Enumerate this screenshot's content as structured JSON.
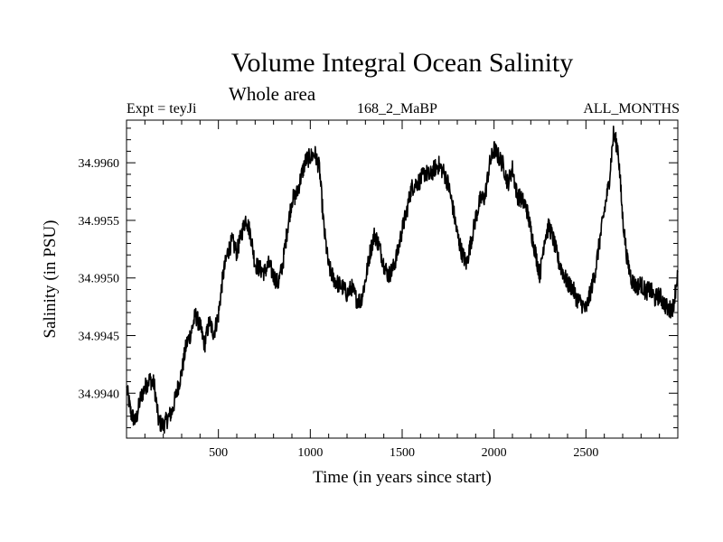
{
  "chart_data": {
    "type": "line",
    "title": "Volume Integral Ocean Salinity",
    "subtitle": "Whole area",
    "experiment_label": "Expt = teyJi",
    "run_label": "168_2_MaBP",
    "period_label": "ALL_MONTHS",
    "xlabel": "Time (in years since start)",
    "ylabel": "Salinity (in PSU)",
    "xlim": [
      0,
      3000
    ],
    "ylim": [
      34.99361,
      34.99637
    ],
    "x_ticks": [
      500,
      1000,
      1500,
      2000,
      2500
    ],
    "y_ticks": [
      34.994,
      34.9945,
      34.995,
      34.9955,
      34.996
    ],
    "y_tick_labels": [
      "34.9940",
      "34.9945",
      "34.9950",
      "34.9955",
      "34.9960"
    ],
    "grid": false,
    "series": [
      {
        "name": "Salinity",
        "x": [
          0,
          25,
          50,
          75,
          100,
          125,
          150,
          175,
          200,
          225,
          250,
          275,
          300,
          325,
          350,
          375,
          400,
          425,
          450,
          475,
          500,
          525,
          550,
          575,
          600,
          625,
          650,
          675,
          700,
          725,
          750,
          775,
          800,
          825,
          850,
          875,
          900,
          925,
          950,
          975,
          1000,
          1025,
          1050,
          1075,
          1100,
          1125,
          1150,
          1175,
          1200,
          1225,
          1250,
          1275,
          1300,
          1325,
          1350,
          1375,
          1400,
          1425,
          1450,
          1475,
          1500,
          1525,
          1550,
          1575,
          1600,
          1625,
          1650,
          1675,
          1700,
          1725,
          1750,
          1775,
          1800,
          1825,
          1850,
          1875,
          1900,
          1925,
          1950,
          1975,
          2000,
          2025,
          2050,
          2075,
          2100,
          2125,
          2150,
          2175,
          2200,
          2225,
          2250,
          2275,
          2300,
          2325,
          2350,
          2375,
          2400,
          2425,
          2450,
          2475,
          2500,
          2525,
          2550,
          2575,
          2600,
          2625,
          2650,
          2675,
          2700,
          2725,
          2750,
          2775,
          2800,
          2825,
          2850,
          2875,
          2900,
          2925,
          2950,
          2975,
          3000
        ],
        "values": [
          34.99405,
          34.99382,
          34.99375,
          34.99395,
          34.99405,
          34.99412,
          34.99408,
          34.99375,
          34.99372,
          34.99378,
          34.99385,
          34.99402,
          34.99418,
          34.99442,
          34.99452,
          34.99468,
          34.99458,
          34.99442,
          34.99462,
          34.99452,
          34.99468,
          34.99502,
          34.99522,
          34.99532,
          34.99522,
          34.99538,
          34.99552,
          34.99538,
          34.99512,
          34.99508,
          34.99505,
          34.99512,
          34.99502,
          34.99495,
          34.99512,
          34.99542,
          34.99568,
          34.99572,
          34.99588,
          34.99602,
          34.99605,
          34.99608,
          34.99595,
          34.99542,
          34.9951,
          34.995,
          34.99495,
          34.99492,
          34.99486,
          34.99492,
          34.99482,
          34.9948,
          34.99498,
          34.99522,
          34.99538,
          34.99528,
          34.99512,
          34.99502,
          34.99508,
          34.99522,
          34.99542,
          34.99558,
          34.99578,
          34.99582,
          34.99585,
          34.99592,
          34.99588,
          34.99595,
          34.99598,
          34.99592,
          34.99582,
          34.99562,
          34.99538,
          34.99522,
          34.99512,
          34.99532,
          34.99552,
          34.99568,
          34.9957,
          34.99598,
          34.99612,
          34.99605,
          34.99598,
          34.99582,
          34.99595,
          34.99572,
          34.99568,
          34.99562,
          34.99542,
          34.99522,
          34.99502,
          34.99535,
          34.99545,
          34.99532,
          34.99515,
          34.99505,
          34.99495,
          34.99492,
          34.99482,
          34.99478,
          34.99472,
          34.99488,
          34.99505,
          34.99532,
          34.99558,
          34.99582,
          34.99625,
          34.99612,
          34.99552,
          34.99515,
          34.99498,
          34.99492,
          34.99495,
          34.99488,
          34.9949,
          34.99482,
          34.99485,
          34.99478,
          34.99472,
          34.99475,
          34.99505
        ]
      }
    ]
  }
}
